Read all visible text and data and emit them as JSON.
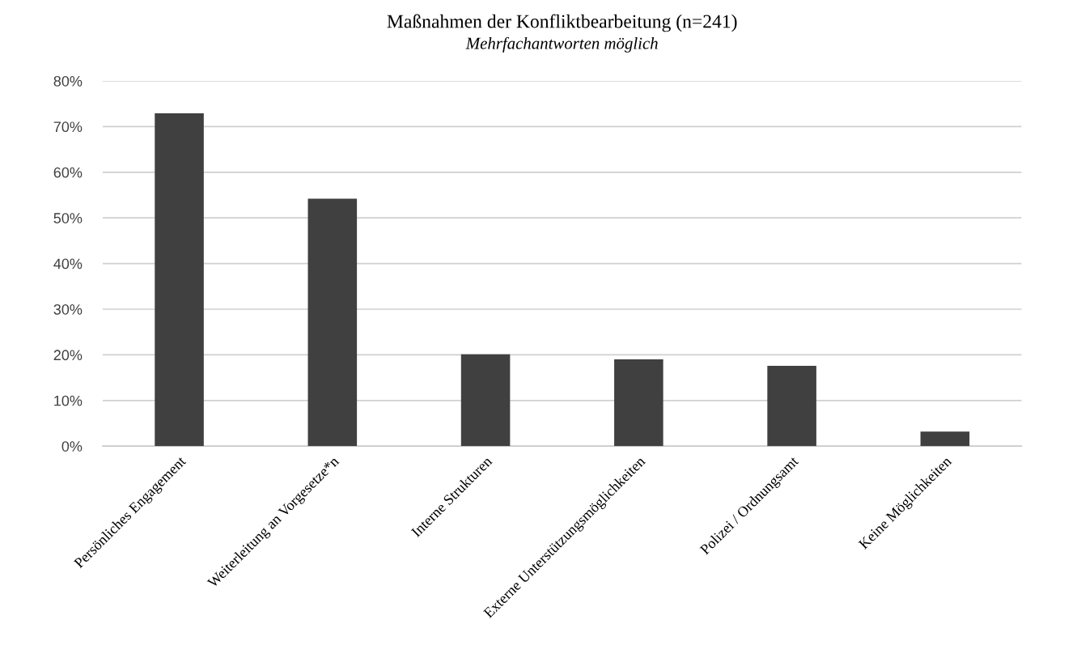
{
  "chart_data": {
    "type": "bar",
    "title": "Maßnahmen der Konfliktbearbeitung (n=241)",
    "subtitle": "Mehrfachantworten möglich",
    "categories": [
      "Persönliches Engagement",
      "Weiterleitung an Vorgesetze*n",
      "Interne Strukturen",
      "Externe Unterstützungsmöglichkeiten",
      "Polizei / Ordnungsamt",
      "Keine Möglichkeiten"
    ],
    "values": [
      72.9,
      54.2,
      20.1,
      19.0,
      17.6,
      3.2
    ],
    "color": "#404040",
    "ylim": [
      0,
      80
    ],
    "yticks": [
      {
        "value": 0,
        "label": "0%"
      },
      {
        "value": 10,
        "label": "10%"
      },
      {
        "value": 20,
        "label": "20%"
      },
      {
        "value": 30,
        "label": "30%"
      },
      {
        "value": 40,
        "label": "40%"
      },
      {
        "value": 50,
        "label": "50%"
      },
      {
        "value": 60,
        "label": "60%"
      },
      {
        "value": 70,
        "label": "70%"
      },
      {
        "value": 80,
        "label": "80%"
      }
    ],
    "grid": "y"
  }
}
